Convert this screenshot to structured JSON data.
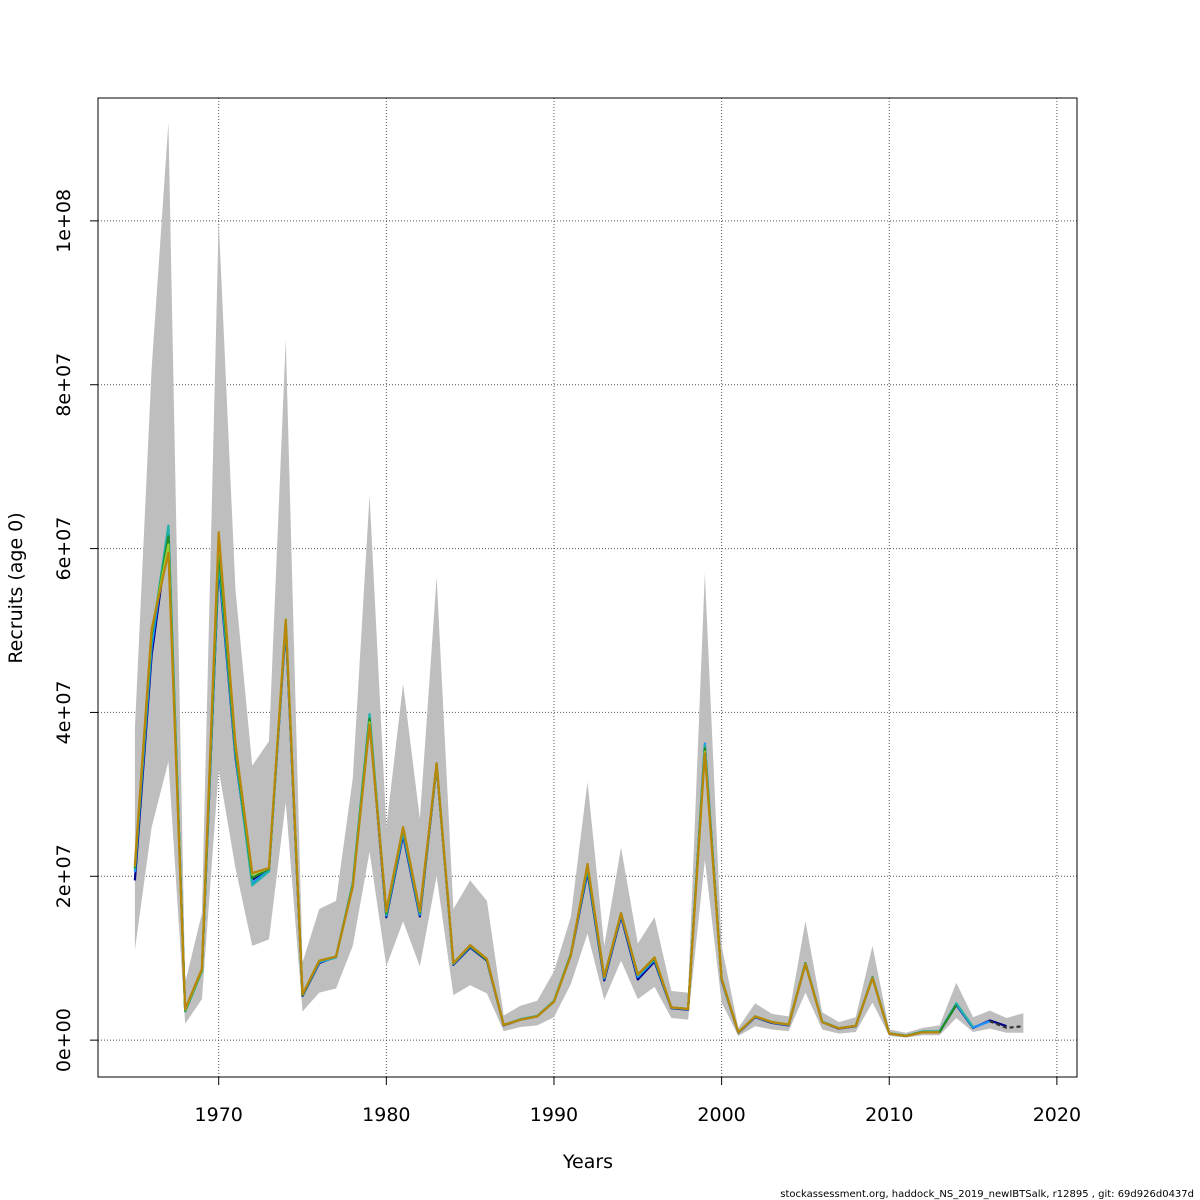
{
  "chart_data": {
    "type": "line",
    "xlabel": "Years",
    "ylabel": "Recruits (age 0)",
    "xlim": [
      1962.8,
      2021.2
    ],
    "ylim": [
      -4500000,
      115000000
    ],
    "grid": true,
    "x_ticks": [
      1970,
      1980,
      1990,
      2000,
      2010,
      2020
    ],
    "x_tick_labels": [
      "1970",
      "1980",
      "1990",
      "2000",
      "2010",
      "2020"
    ],
    "y_ticks": [
      0,
      20000000,
      40000000,
      60000000,
      80000000,
      100000000
    ],
    "y_tick_labels": [
      "0e+00",
      "2e+07",
      "4e+07",
      "6e+07",
      "8e+07",
      "1e+08"
    ],
    "band": {
      "color": "#bebebe",
      "x": [
        1965,
        1966,
        1967,
        1968,
        1969,
        1970,
        1971,
        1972,
        1973,
        1974,
        1975,
        1976,
        1977,
        1978,
        1979,
        1980,
        1981,
        1982,
        1983,
        1984,
        1985,
        1986,
        1987,
        1988,
        1989,
        1990,
        1991,
        1992,
        1993,
        1994,
        1995,
        1996,
        1997,
        1998,
        1999,
        2000,
        2001,
        2002,
        2003,
        2004,
        2005,
        2006,
        2007,
        2008,
        2009,
        2010,
        2011,
        2012,
        2013,
        2014,
        2015,
        2016,
        2017,
        2018
      ],
      "lower": [
        11000000,
        26000000,
        34000000,
        2000000,
        5000000,
        33000000,
        21000000,
        11500000,
        12300000,
        29000000,
        3500000,
        5800000,
        6300000,
        11500000,
        23000000,
        9000000,
        14500000,
        9000000,
        20000000,
        5500000,
        6700000,
        5700000,
        1100000,
        1600000,
        1800000,
        2800000,
        6800000,
        13000000,
        4900000,
        9700000,
        5000000,
        6500000,
        2700000,
        2500000,
        22000000,
        4600000,
        500000,
        1700000,
        1300000,
        1100000,
        5800000,
        1300000,
        800000,
        1000000,
        4600000,
        500000,
        300000,
        600000,
        600000,
        2700000,
        1000000,
        1400000,
        900000,
        900000
      ],
      "upper": [
        38000000,
        82000000,
        112000000,
        7000000,
        15500000,
        100000000,
        55000000,
        33500000,
        36500000,
        85500000,
        9500000,
        16000000,
        17000000,
        32000000,
        66500000,
        26000000,
        43500000,
        27000000,
        56500000,
        16000000,
        19500000,
        17000000,
        3000000,
        4200000,
        4800000,
        8400000,
        15000000,
        31500000,
        11500000,
        23500000,
        11800000,
        15000000,
        6000000,
        5800000,
        57000000,
        11500000,
        1500000,
        4500000,
        3200000,
        2900000,
        14500000,
        3400000,
        2200000,
        2800000,
        11500000,
        1300000,
        900000,
        1500000,
        1800000,
        7000000,
        2800000,
        3600000,
        2700000,
        3300000
      ]
    },
    "series": [
      {
        "color": "#00008b",
        "dashed": false,
        "x": [
          1965,
          1966,
          1967,
          1968,
          1969,
          1970,
          1971,
          1972,
          1973,
          1974,
          1975,
          1976,
          1977,
          1978,
          1979,
          1980,
          1981,
          1982,
          1983,
          1984,
          1985,
          1986,
          1987,
          1988,
          1989,
          1990,
          1991,
          1992,
          1993,
          1994,
          1995,
          1996,
          1997,
          1998,
          1999,
          2000,
          2001,
          2002,
          2003,
          2004,
          2005,
          2006,
          2007,
          2008,
          2009,
          2010,
          2011,
          2012,
          2013,
          2014,
          2015,
          2016,
          2017
        ],
        "values": [
          19500000,
          47000000,
          62000000,
          3700000,
          8600000,
          58000000,
          34500000,
          19600000,
          20800000,
          50500000,
          5400000,
          9400000,
          10200000,
          19000000,
          39000000,
          15000000,
          25000000,
          15100000,
          33500000,
          9200000,
          11300000,
          9700000,
          1800000,
          2500000,
          2900000,
          4700000,
          10300000,
          20500000,
          7300000,
          15100000,
          7400000,
          9600000,
          3900000,
          3700000,
          36000000,
          7300000,
          900000,
          2800000,
          2100000,
          1800000,
          9300000,
          2200000,
          1400000,
          1700000,
          7600000,
          800000,
          500000,
          1000000,
          1000000,
          4300000,
          1500000,
          2400000,
          1700000
        ]
      },
      {
        "color": "#1e90ff",
        "dashed": false,
        "x": [
          1965,
          1966,
          1967,
          1968,
          1969,
          1970,
          1971,
          1972,
          1973,
          1974,
          1975,
          1976,
          1977,
          1978,
          1979,
          1980,
          1981,
          1982,
          1983,
          1984,
          1985,
          1986,
          1987,
          1988,
          1989,
          1990,
          1991,
          1992,
          1993,
          1994,
          1995,
          1996,
          1997,
          1998,
          1999,
          2000,
          2001,
          2002,
          2003,
          2004,
          2005,
          2006,
          2007,
          2008,
          2009,
          2010,
          2011,
          2012,
          2013,
          2014,
          2015,
          2016
        ],
        "values": [
          20500000,
          48000000,
          62500000,
          3600000,
          8500000,
          58500000,
          34800000,
          19200000,
          20700000,
          50800000,
          5500000,
          9500000,
          10100000,
          19100000,
          39500000,
          15200000,
          25300000,
          15300000,
          33700000,
          9300000,
          11400000,
          9800000,
          1850000,
          2550000,
          2950000,
          4750000,
          10400000,
          20800000,
          7500000,
          15300000,
          7700000,
          9800000,
          3950000,
          3750000,
          36200000,
          7400000,
          920000,
          2850000,
          2150000,
          1850000,
          9400000,
          2250000,
          1450000,
          1750000,
          7700000,
          820000,
          520000,
          1050000,
          1050000,
          4400000,
          1550000,
          2300000
        ]
      },
      {
        "color": "#20b2aa",
        "dashed": false,
        "x": [
          1965,
          1966,
          1967,
          1968,
          1969,
          1970,
          1971,
          1972,
          1973,
          1974,
          1975,
          1976,
          1977,
          1978,
          1979,
          1980,
          1981,
          1982,
          1983,
          1984,
          1985,
          1986,
          1987,
          1988,
          1989,
          1990,
          1991,
          1992,
          1993,
          1994,
          1995,
          1996,
          1997,
          1998,
          1999,
          2000,
          2001,
          2002,
          2003,
          2004,
          2005,
          2006,
          2007,
          2008,
          2009,
          2010,
          2011,
          2012,
          2013,
          2014,
          2015
        ],
        "values": [
          20800000,
          49000000,
          62800000,
          3500000,
          8400000,
          59000000,
          35000000,
          18900000,
          20600000,
          51000000,
          5500000,
          9600000,
          10100000,
          19200000,
          39800000,
          15300000,
          25600000,
          15500000,
          33800000,
          9300000,
          11500000,
          9800000,
          1850000,
          2550000,
          2950000,
          4800000,
          10500000,
          21000000,
          7600000,
          15400000,
          7900000,
          9900000,
          4000000,
          3800000,
          36000000,
          7400000,
          940000,
          2900000,
          2200000,
          1900000,
          9400000,
          2250000,
          1450000,
          1750000,
          7700000,
          830000,
          530000,
          1050000,
          1050000,
          4500000,
          1600000
        ]
      },
      {
        "color": "#228b22",
        "dashed": false,
        "x": [
          1965,
          1966,
          1967,
          1968,
          1969,
          1970,
          1971,
          1972,
          1973,
          1974,
          1975,
          1976,
          1977,
          1978,
          1979,
          1980,
          1981,
          1982,
          1983,
          1984,
          1985,
          1986,
          1987,
          1988,
          1989,
          1990,
          1991,
          1992,
          1993,
          1994,
          1995,
          1996,
          1997,
          1998,
          1999,
          2000,
          2001,
          2002,
          2003,
          2004,
          2005,
          2006,
          2007,
          2008,
          2009,
          2010,
          2011,
          2012,
          2013,
          2014
        ],
        "values": [
          21000000,
          49500000,
          61500000,
          3600000,
          8500000,
          60000000,
          35500000,
          19800000,
          20900000,
          51200000,
          5500000,
          9700000,
          10200000,
          19000000,
          39200000,
          15500000,
          25900000,
          15600000,
          33600000,
          9400000,
          11500000,
          9800000,
          1850000,
          2500000,
          2900000,
          4700000,
          10400000,
          21200000,
          7700000,
          15500000,
          8000000,
          10000000,
          4000000,
          3800000,
          35600000,
          7500000,
          950000,
          2900000,
          2200000,
          1900000,
          9400000,
          2200000,
          1450000,
          1750000,
          7650000,
          820000,
          520000,
          1000000,
          1000000,
          4300000
        ]
      },
      {
        "color": "#9acd32",
        "dashed": false,
        "x": [
          1965,
          1966,
          1967,
          1968,
          1969,
          1970,
          1971,
          1972,
          1973,
          1974,
          1975,
          1976,
          1977,
          1978,
          1979,
          1980,
          1981,
          1982,
          1983,
          1984,
          1985,
          1986,
          1987,
          1988,
          1989,
          1990,
          1991,
          1992,
          1993,
          1994,
          1995,
          1996,
          1997,
          1998,
          1999,
          2000,
          2001,
          2002,
          2003,
          2004,
          2005,
          2006,
          2007,
          2008,
          2009,
          2010,
          2011,
          2012,
          2013
        ],
        "values": [
          21200000,
          50000000,
          60500000,
          3700000,
          8600000,
          61500000,
          36000000,
          20200000,
          21000000,
          51400000,
          5600000,
          9700000,
          10200000,
          18800000,
          38800000,
          15700000,
          26000000,
          15700000,
          33700000,
          9400000,
          11600000,
          9900000,
          1850000,
          2500000,
          2900000,
          4700000,
          10300000,
          21400000,
          7700000,
          15500000,
          8000000,
          10100000,
          4000000,
          3800000,
          35200000,
          7500000,
          950000,
          2900000,
          2200000,
          1900000,
          9300000,
          2200000,
          1450000,
          1750000,
          7600000,
          800000,
          500000,
          950000,
          950000
        ]
      },
      {
        "color": "#b8860b",
        "dashed": false,
        "x": [
          1965,
          1966,
          1967,
          1968,
          1969,
          1970,
          1971,
          1972,
          1973,
          1974,
          1975,
          1976,
          1977,
          1978,
          1979,
          1980,
          1981,
          1982,
          1983,
          1984,
          1985,
          1986,
          1987,
          1988,
          1989,
          1990,
          1991,
          1992,
          1993,
          1994,
          1995,
          1996,
          1997,
          1998,
          1999,
          2000,
          2001,
          2002,
          2003,
          2004,
          2005,
          2006,
          2007,
          2008,
          2009,
          2010,
          2011,
          2012,
          2013
        ],
        "values": [
          21300000,
          50200000,
          59500000,
          3800000,
          8700000,
          62000000,
          36200000,
          20400000,
          21000000,
          51300000,
          5600000,
          9700000,
          10200000,
          18700000,
          38500000,
          15800000,
          26000000,
          15800000,
          33800000,
          9400000,
          11600000,
          9900000,
          1850000,
          2500000,
          2900000,
          4700000,
          10300000,
          21500000,
          7700000,
          15500000,
          8000000,
          10100000,
          4000000,
          3800000,
          35000000,
          7500000,
          950000,
          2900000,
          2200000,
          1900000,
          9300000,
          2200000,
          1450000,
          1750000,
          7600000,
          800000,
          500000,
          950000,
          950000
        ]
      },
      {
        "color": "#333333",
        "dashed": true,
        "x": [
          2016,
          2017,
          2018
        ],
        "values": [
          2300000,
          1500000,
          1700000
        ]
      }
    ]
  },
  "footer": {
    "credit": "stockassessment.org, haddock_NS_2019_newIBTSalk, r12895 , git: 69d926d0437d"
  }
}
